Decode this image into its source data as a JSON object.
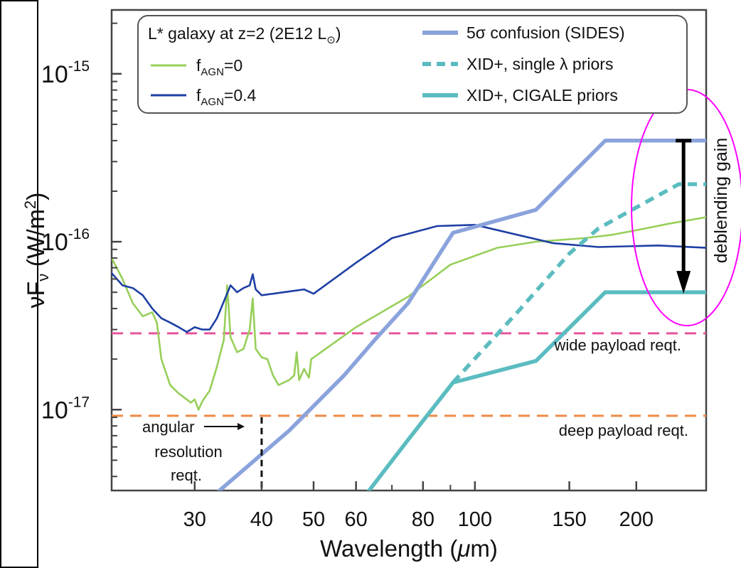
{
  "chart_data": {
    "type": "line",
    "xlabel": "Wavelength (μm)",
    "ylabel": "νF_ν (W/m²)",
    "xscale": "log",
    "yscale": "log",
    "xlim": [
      21,
      270
    ],
    "ylim": [
      3.3e-18,
      2.4e-15
    ],
    "xticks": [
      {
        "value": 30,
        "label": "30"
      },
      {
        "value": 40,
        "label": "40"
      },
      {
        "value": 50,
        "label": "50"
      },
      {
        "value": 60,
        "label": "60"
      },
      {
        "value": 80,
        "label": "80"
      },
      {
        "value": 100,
        "label": "100"
      },
      {
        "value": 150,
        "label": "150"
      },
      {
        "value": 200,
        "label": "200"
      }
    ],
    "yticks": [
      {
        "value": 1e-17,
        "base": "10",
        "exp": "-17"
      },
      {
        "value": 1e-16,
        "base": "10",
        "exp": "-16"
      },
      {
        "value": 1e-15,
        "base": "10",
        "exp": "-15"
      }
    ],
    "legend": {
      "placement": "top",
      "title": {
        "text": "L* galaxy at z=2 (2E12 L",
        "symbol": "⊙",
        "close": ")"
      }
    },
    "series": [
      {
        "id": "fagn0",
        "legend": {
          "base": "f",
          "sub": "AGN",
          "rest": "=0"
        },
        "color": "#97cf5a",
        "style": "solid",
        "points": [
          [
            21,
            8e-17
          ],
          [
            22,
            6e-17
          ],
          [
            23,
            4.3e-17
          ],
          [
            24,
            3.6e-17
          ],
          [
            25,
            3.8e-17
          ],
          [
            25.5,
            3.3e-17
          ],
          [
            26,
            2e-17
          ],
          [
            27,
            1.4e-17
          ],
          [
            28,
            1.25e-17
          ],
          [
            29,
            1.15e-17
          ],
          [
            29.5,
            1.1e-17
          ],
          [
            30,
            1.15e-17
          ],
          [
            30.5,
            1e-17
          ],
          [
            31,
            1.12e-17
          ],
          [
            32,
            1.3e-17
          ],
          [
            33,
            1.8e-17
          ],
          [
            34,
            2.6e-17
          ],
          [
            34.5,
            5.5e-17
          ],
          [
            35,
            2.7e-17
          ],
          [
            36,
            2.2e-17
          ],
          [
            37,
            2.3e-17
          ],
          [
            38,
            3e-17
          ],
          [
            38.5,
            4.6e-17
          ],
          [
            39,
            2.3e-17
          ],
          [
            40,
            2.05e-17
          ],
          [
            41,
            2e-17
          ],
          [
            42,
            1.6e-17
          ],
          [
            43,
            1.4e-17
          ],
          [
            44,
            1.45e-17
          ],
          [
            45,
            1.5e-17
          ],
          [
            46,
            1.6e-17
          ],
          [
            46.5,
            2.2e-17
          ],
          [
            47,
            1.5e-17
          ],
          [
            48,
            1.75e-17
          ],
          [
            49,
            1.55e-17
          ],
          [
            49.5,
            2e-17
          ],
          [
            60,
            3.1e-17
          ],
          [
            75,
            4.7e-17
          ],
          [
            90,
            7.3e-17
          ],
          [
            110,
            9.2e-17
          ],
          [
            130,
            1e-16
          ],
          [
            160,
            1.05e-16
          ],
          [
            180,
            1.1e-16
          ],
          [
            200,
            1.17e-16
          ],
          [
            230,
            1.28e-16
          ],
          [
            270,
            1.4e-16
          ]
        ]
      },
      {
        "id": "fagn04",
        "legend": {
          "base": "f",
          "sub": "AGN",
          "rest": "=0.4"
        },
        "color": "#1e3fa4",
        "style": "solid",
        "points": [
          [
            21,
            6.5e-17
          ],
          [
            22,
            5.5e-17
          ],
          [
            23,
            5.3e-17
          ],
          [
            24,
            4.8e-17
          ],
          [
            25,
            4e-17
          ],
          [
            26,
            3.5e-17
          ],
          [
            27,
            3.3e-17
          ],
          [
            28,
            3.1e-17
          ],
          [
            29,
            2.9e-17
          ],
          [
            30,
            3.1e-17
          ],
          [
            31,
            3e-17
          ],
          [
            32,
            3e-17
          ],
          [
            33,
            3.5e-17
          ],
          [
            34,
            4.4e-17
          ],
          [
            35,
            5.5e-17
          ],
          [
            36,
            5e-17
          ],
          [
            37,
            5.3e-17
          ],
          [
            38,
            5.5e-17
          ],
          [
            38.5,
            6.4e-17
          ],
          [
            39,
            5.2e-17
          ],
          [
            40,
            4.8e-17
          ],
          [
            42,
            4.9e-17
          ],
          [
            44,
            5e-17
          ],
          [
            46,
            5.1e-17
          ],
          [
            48,
            5.2e-17
          ],
          [
            50,
            4.9e-17
          ],
          [
            60,
            7.5e-17
          ],
          [
            70,
            1.05e-16
          ],
          [
            85,
            1.24e-16
          ],
          [
            100,
            1.26e-16
          ],
          [
            120,
            1.1e-16
          ],
          [
            140,
            9.8e-17
          ],
          [
            170,
            9.3e-17
          ],
          [
            220,
            9.5e-17
          ],
          [
            270,
            9.2e-17
          ]
        ]
      },
      {
        "id": "confusion",
        "legend": {
          "text": "5σ confusion (SIDES)"
        },
        "color": "#8ba3dc",
        "style": "thick",
        "points": [
          [
            33,
            3.2e-18
          ],
          [
            45,
            7.5e-18
          ],
          [
            57,
            1.6e-17
          ],
          [
            65,
            2.6e-17
          ],
          [
            75,
            4.3e-17
          ],
          [
            91,
            1.13e-16
          ],
          [
            130,
            1.55e-16
          ],
          [
            175,
            4e-16
          ],
          [
            270,
            4e-16
          ]
        ]
      },
      {
        "id": "xid-single",
        "legend": {
          "text": "XID+, single λ priors"
        },
        "color": "#5bbcc0",
        "style": "dashed",
        "points": [
          [
            91,
            1.45e-17
          ],
          [
            120,
            3.8e-17
          ],
          [
            150,
            8.5e-17
          ],
          [
            170,
            1.2e-16
          ],
          [
            200,
            1.6e-16
          ],
          [
            240,
            2.2e-16
          ],
          [
            270,
            2.2e-16
          ]
        ]
      },
      {
        "id": "xid-cigale",
        "legend": {
          "text": "XID+, CIGALE priors"
        },
        "color": "#5bbcc0",
        "style": "thick",
        "points": [
          [
            63,
            3.2e-18
          ],
          [
            75,
            6.6e-18
          ],
          [
            91,
            1.45e-17
          ],
          [
            130,
            1.95e-17
          ],
          [
            175,
            5e-17
          ],
          [
            270,
            5e-17
          ]
        ]
      }
    ],
    "hlines": [
      {
        "id": "wide",
        "y": 2.85e-17,
        "color": "#e7549a",
        "label": "wide payload reqt."
      },
      {
        "id": "deep",
        "y": 9.2e-18,
        "color": "#ee8a46",
        "label": "deep payload reqt."
      }
    ],
    "vline": {
      "x": 40,
      "color": "#111111"
    },
    "annotations": {
      "resolution": [
        "angular",
        "resolution",
        "reqt."
      ],
      "gain": {
        "text": "deblending gain",
        "x": 245,
        "y_from": 4e-16,
        "y_to": 5e-17
      },
      "ellipse_color": "#ff00ff"
    }
  }
}
